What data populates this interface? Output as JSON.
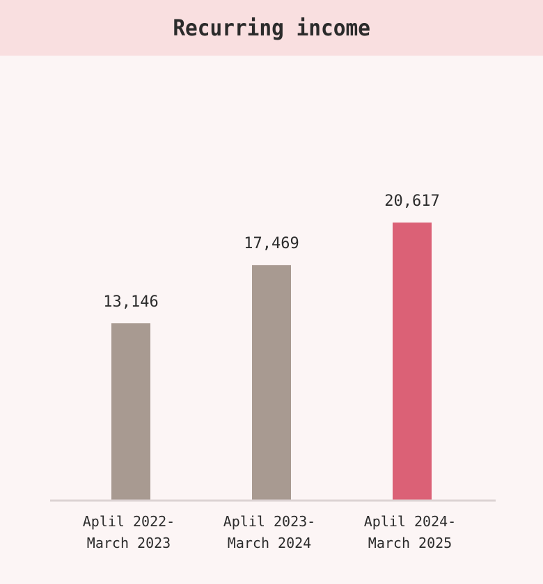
{
  "header": {
    "title": "Recurring income"
  },
  "chart_data": {
    "type": "bar",
    "title": "Recurring income",
    "categories": [
      [
        "Aplil 2022-",
        "March 2023"
      ],
      [
        "Aplil 2023-",
        "March 2024"
      ],
      [
        "Aplil 2024-",
        "March 2025"
      ]
    ],
    "values": [
      13146,
      17469,
      20617
    ],
    "value_labels": [
      "13,146",
      "17,469",
      "20,617"
    ],
    "ylim": [
      0,
      33000
    ],
    "grid": false,
    "colors": {
      "default": "#a89a91",
      "highlight": "#db6176",
      "axis": "#dcd3d3"
    },
    "highlight_index": 2
  }
}
